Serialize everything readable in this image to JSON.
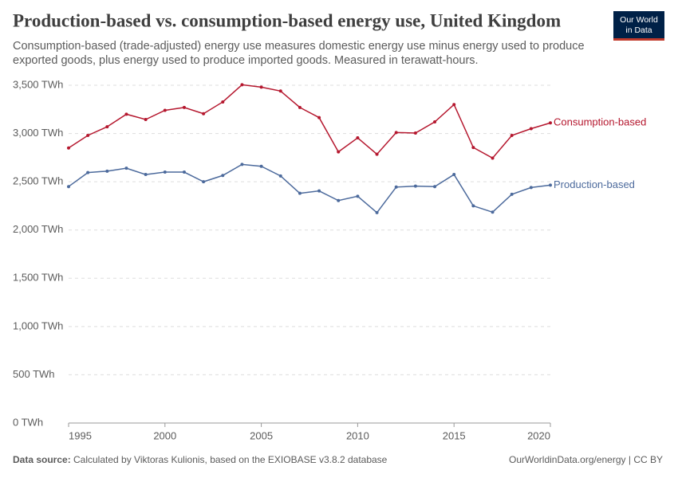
{
  "chart_data": {
    "type": "line",
    "title": "Production-based vs. consumption-based energy use, United Kingdom",
    "subtitle": [
      "Consumption-based (trade-adjusted) energy use measures domestic energy use minus energy used to produce",
      "exported goods, plus energy used to produce imported goods. Measured in terawatt-hours."
    ],
    "logo": [
      "Our World",
      "in Data"
    ],
    "source_label": "Data source:",
    "source": "Calculated by Viktoras Kulionis, based on the EXIOBASE v3.8.2 database",
    "license": "OurWorldinData.org/energy | CC BY",
    "x": [
      1995,
      1996,
      1997,
      1998,
      1999,
      2000,
      2001,
      2002,
      2003,
      2004,
      2005,
      2006,
      2007,
      2008,
      2009,
      2010,
      2011,
      2012,
      2013,
      2014,
      2015,
      2016,
      2017,
      2018,
      2019,
      2020
    ],
    "series": [
      {
        "name": "Consumption-based",
        "color": "#b5172e",
        "values": [
          2850,
          2980,
          3070,
          3200,
          3145,
          3240,
          3270,
          3205,
          3327,
          3505,
          3480,
          3440,
          3270,
          3165,
          2810,
          2955,
          2785,
          3010,
          3005,
          3120,
          3300,
          2855,
          2745,
          2980,
          3050,
          3110
        ]
      },
      {
        "name": "Production-based",
        "color": "#4c6a9c",
        "values": [
          2450,
          2595,
          2610,
          2640,
          2575,
          2600,
          2600,
          2500,
          2565,
          2680,
          2660,
          2560,
          2380,
          2405,
          2305,
          2350,
          2180,
          2445,
          2455,
          2450,
          2575,
          2250,
          2185,
          2370,
          2440,
          2465
        ]
      }
    ],
    "xlim": [
      1995,
      2020
    ],
    "xticks": [
      1995,
      2000,
      2005,
      2010,
      2015,
      2020
    ],
    "ylim": [
      0,
      3500
    ],
    "yticks": [
      {
        "value": 0,
        "label": "0 TWh"
      },
      {
        "value": 500,
        "label": "500 TWh"
      },
      {
        "value": 1000,
        "label": "1,000 TWh"
      },
      {
        "value": 1500,
        "label": "1,500 TWh"
      },
      {
        "value": 2000,
        "label": "2,000 TWh"
      },
      {
        "value": 2500,
        "label": "2,500 TWh"
      },
      {
        "value": 3000,
        "label": "3,000 TWh"
      },
      {
        "value": 3500,
        "label": "3,500 TWh"
      }
    ],
    "grid": true
  }
}
